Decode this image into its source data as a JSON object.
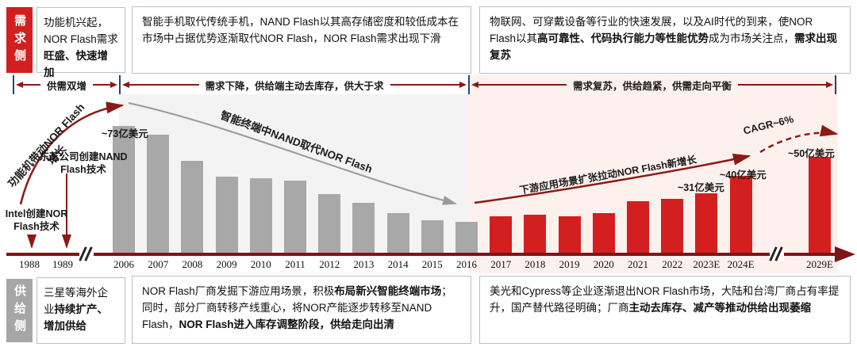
{
  "colors": {
    "demand_accent": "#d21f1f",
    "supply_accent": "#a6a6a6",
    "bar_gray": "#a8a8a8",
    "bar_red": "#d31f1f",
    "arrow_maroon": "#8b1a14",
    "axis_maroon": "#7d1416",
    "tick_navy": "#24457e",
    "zone_gray": "#f3f3f3",
    "zone_pink": "#fdf1ee"
  },
  "demand_side": {
    "label": "需求侧",
    "boxes": [
      {
        "segments": [
          {
            "text": "功能机兴起，NOR Flash需求",
            "bold": false
          },
          {
            "text": "旺盛、快速增加",
            "bold": true
          }
        ]
      },
      {
        "segments": [
          {
            "text": "智能手机取代传统手机，NAND Flash以其高存储密度和较低成本在市场中占据优势逐渐取代NOR Flash，NOR Flash需求出现下滑",
            "bold": false
          }
        ]
      },
      {
        "segments": [
          {
            "text": "物联网、可穿戴设备等行业的快速发展，以及AI时代的到来，使NOR Flash以其",
            "bold": false
          },
          {
            "text": "高可靠性、代码执行能力等性能优势",
            "bold": true
          },
          {
            "text": "成为市场关注点，",
            "bold": false
          },
          {
            "text": "需求出现复苏",
            "bold": true
          }
        ]
      }
    ]
  },
  "supply_side": {
    "label": "供给侧",
    "boxes": [
      {
        "segments": [
          {
            "text": "三星等海外企业",
            "bold": false
          },
          {
            "text": "持续扩产、增加供给",
            "bold": true
          }
        ]
      },
      {
        "segments": [
          {
            "text": "NOR Flash厂商发掘下游应用场景，积极",
            "bold": false
          },
          {
            "text": "布局新兴智能终端市场",
            "bold": true
          },
          {
            "text": "；同时，部分厂商转移产线重心，将NOR产能逐步转移至NAND Flash，",
            "bold": false
          },
          {
            "text": "NOR Flash进入库存调整阶段，供给走向出清",
            "bold": true
          }
        ]
      },
      {
        "segments": [
          {
            "text": "美光和Cypress等企业逐渐退出NOR Flash市场，大陆和台湾厂商占有率提升，国产替代路径明确；厂商",
            "bold": false
          },
          {
            "text": "主动去库存、减产等推动供给出现萎缩",
            "bold": true
          }
        ]
      }
    ]
  },
  "phases": [
    {
      "label": "供需双增"
    },
    {
      "label": "需求下降，供给端主动去库存，供大于求"
    },
    {
      "label": "需求复苏，供给趋紧，供需走向平衡"
    }
  ],
  "chart_data": {
    "type": "bar",
    "unit": "亿美元",
    "x_axis": [
      "1988",
      "1989",
      "2006",
      "2007",
      "2008",
      "2009",
      "2010",
      "2011",
      "2012",
      "2013",
      "2014",
      "2015",
      "2016",
      "2017",
      "2018",
      "2019",
      "2020",
      "2021",
      "2022",
      "2023E",
      "2024E",
      "2029E"
    ],
    "x_breaks": [
      [
        "1989",
        "2006"
      ],
      [
        "2024E",
        "2029E"
      ]
    ],
    "ylim": [
      0,
      80
    ],
    "bars": [
      {
        "year": "2006",
        "value": 73,
        "color": "gray",
        "label": "~73亿美元"
      },
      {
        "year": "2007",
        "value": 68,
        "color": "gray",
        "label": ""
      },
      {
        "year": "2008",
        "value": 53,
        "color": "gray",
        "label": ""
      },
      {
        "year": "2009",
        "value": 44,
        "color": "gray",
        "label": ""
      },
      {
        "year": "2010",
        "value": 43,
        "color": "gray",
        "label": ""
      },
      {
        "year": "2011",
        "value": 42,
        "color": "gray",
        "label": ""
      },
      {
        "year": "2012",
        "value": 34,
        "color": "gray",
        "label": ""
      },
      {
        "year": "2013",
        "value": 29,
        "color": "gray",
        "label": ""
      },
      {
        "year": "2014",
        "value": 23,
        "color": "gray",
        "label": ""
      },
      {
        "year": "2015",
        "value": 19,
        "color": "gray",
        "label": ""
      },
      {
        "year": "2016",
        "value": 18,
        "color": "gray",
        "label": ""
      },
      {
        "year": "2017",
        "value": 19,
        "color": "red",
        "label": ""
      },
      {
        "year": "2018",
        "value": 20,
        "color": "red",
        "label": ""
      },
      {
        "year": "2019",
        "value": 19,
        "color": "red",
        "label": ""
      },
      {
        "year": "2020",
        "value": 21,
        "color": "red",
        "label": ""
      },
      {
        "year": "2021",
        "value": 27,
        "color": "red",
        "label": ""
      },
      {
        "year": "2022",
        "value": 28,
        "color": "red",
        "label": ""
      },
      {
        "year": "2023E",
        "value": 31,
        "color": "red",
        "label": "~31亿美元"
      },
      {
        "year": "2024E",
        "value": 40,
        "color": "red",
        "label": "~40亿美元"
      },
      {
        "year": "2029E",
        "value": 50,
        "color": "red",
        "label": "~50亿美元"
      }
    ],
    "annotations": {
      "intel": "Intel创建NOR Flash技术",
      "toshiba": "东芝公司创建NAND Flash技术",
      "rising": "功能机带动NOR Flash增长",
      "decline": "智能终端中NAND取代NOR Flash",
      "growth": "下游应用场景扩张拉动NOR Flash新增长",
      "cagr": "CAGR~6%"
    }
  }
}
